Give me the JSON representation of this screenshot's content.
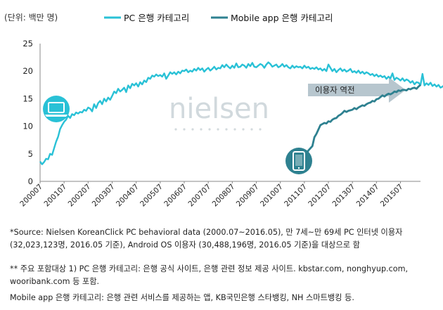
{
  "chart_data": {
    "type": "line",
    "unit_label": "(단위: 백만 명)",
    "ylim": [
      0,
      25
    ],
    "y_ticks": [
      0,
      5,
      10,
      15,
      20,
      25
    ],
    "x_tick_labels": [
      "200007",
      "200107",
      "200207",
      "200307",
      "200407",
      "200507",
      "200607",
      "200707",
      "200807",
      "200907",
      "201007",
      "201107",
      "201207",
      "201307",
      "201407",
      "201507"
    ],
    "grid": false,
    "legend_position": "top",
    "series": [
      {
        "name": "PC 은행 카테고리",
        "color": "#29c1d6",
        "start": "200007",
        "values": [
          3.6,
          3.1,
          3.5,
          4.1,
          4.0,
          5.0,
          4.8,
          6.0,
          7.2,
          8.1,
          9.5,
          10.2,
          10.8,
          11.2,
          11.9,
          11.5,
          12.2,
          12.0,
          12.5,
          12.3,
          12.6,
          12.5,
          13.0,
          12.8,
          13.4,
          13.2,
          12.7,
          14.0,
          13.3,
          14.2,
          14.6,
          14.0,
          15.0,
          14.5,
          15.2,
          14.8,
          15.5,
          16.3,
          16.0,
          16.8,
          16.3,
          16.6,
          17.0,
          16.2,
          17.4,
          16.9,
          17.7,
          17.4,
          17.8,
          17.2,
          18.0,
          17.6,
          18.3,
          18.0,
          18.8,
          18.6,
          19.2,
          19.0,
          19.4,
          19.1,
          19.3,
          19.0,
          19.6,
          18.6,
          19.2,
          19.8,
          19.5,
          19.8,
          19.4,
          19.9,
          19.6,
          20.1,
          20.0,
          20.3,
          19.8,
          20.1,
          19.9,
          20.4,
          20.1,
          20.6,
          20.2,
          20.5,
          19.9,
          20.3,
          20.6,
          20.1,
          20.4,
          20.8,
          20.3,
          20.6,
          20.5,
          21.1,
          20.7,
          21.2,
          20.8,
          20.5,
          21.0,
          20.6,
          21.4,
          20.7,
          20.8,
          21.2,
          21.0,
          20.6,
          21.3,
          20.9,
          21.5,
          20.8,
          20.7,
          21.0,
          21.3,
          21.1,
          20.6,
          21.2,
          21.6,
          21.3,
          20.8,
          21.0,
          21.2,
          20.7,
          20.9,
          21.3,
          20.8,
          21.1,
          20.7,
          20.5,
          21.0,
          20.6,
          20.9,
          20.7,
          20.8,
          20.5,
          21.0,
          20.6,
          20.8,
          20.4,
          20.6,
          20.4,
          20.7,
          20.3,
          20.5,
          20.1,
          20.4,
          20.0,
          21.2,
          20.6,
          20.0,
          20.4,
          19.8,
          20.2,
          20.5,
          20.0,
          20.3,
          19.9,
          20.1,
          20.4,
          19.8,
          20.0,
          19.7,
          20.1,
          19.6,
          19.9,
          19.5,
          19.8,
          19.6,
          19.3,
          19.5,
          19.1,
          19.4,
          19.0,
          19.2,
          18.9,
          19.1,
          18.6,
          19.0,
          18.7,
          19.6,
          18.4,
          18.8,
          18.6,
          18.3,
          18.7,
          18.2,
          18.5,
          18.3,
          17.9,
          18.2,
          17.6,
          18.0,
          17.9,
          17.5,
          19.5,
          17.4,
          17.8,
          17.5,
          17.9,
          17.3,
          17.6,
          17.2,
          17.5,
          17.0,
          17.2,
          17.5,
          16.9,
          17.4,
          17.0,
          16.8,
          17.2,
          16.7,
          16.9,
          17.1,
          16.8,
          16.5,
          16.9,
          17.0,
          17.2,
          16.9,
          17.2,
          16.8,
          16.9,
          16.6,
          17.0,
          16.8,
          16.5,
          18.0,
          16.8,
          16.3,
          16.6,
          17.3,
          16.1,
          15.8,
          16.2
        ]
      },
      {
        "name": "Mobile app 은행 카테고리",
        "color": "#2e8190",
        "start": "201108",
        "values": [
          5.0,
          5.6,
          6.0,
          6.4,
          8.0,
          8.6,
          9.4,
          10.2,
          10.4,
          10.6,
          10.5,
          10.9,
          10.8,
          11.2,
          11.4,
          11.5,
          11.9,
          12.1,
          12.4,
          12.8,
          12.6,
          12.8,
          12.9,
          13.0,
          13.3,
          13.1,
          13.4,
          13.6,
          13.8,
          13.7,
          14.0,
          14.2,
          14.3,
          14.6,
          14.5,
          14.9,
          15.0,
          15.3,
          15.6,
          15.4,
          15.7,
          15.9,
          15.8,
          16.0,
          16.3,
          16.2,
          16.5,
          16.4,
          16.6,
          16.6,
          16.5,
          16.8,
          16.7,
          16.9,
          17.0,
          16.8,
          17.2,
          17.5
        ]
      }
    ],
    "annotations": {
      "reversal_label": "이용자 역전"
    }
  },
  "watermark": "nielsen",
  "notes": {
    "source": "*Source: Nielsen KoreanClick PC behavioral data (2000.07~2016.05), 만 7세~만 69세 PC 인터넷 이용자 (32,023,123명, 2016.05 기준), Android OS 이용자 (30,488,196명, 2016.05 기준)을 대상으로 함",
    "pc_scope": "** 주요 포함대상 1) PC 은행 카테고리: 은행 공식 사이트, 은행 관련 정보 제공 사이트. kbstar.com, nonghyup.com, wooribank.com 등 포함.",
    "mobile_scope": "Mobile app 은행 카테고리: 은행 관련 서비스를 제공하는 앱, KB국민은행 스타뱅킹, NH 스마트뱅킹 등."
  }
}
